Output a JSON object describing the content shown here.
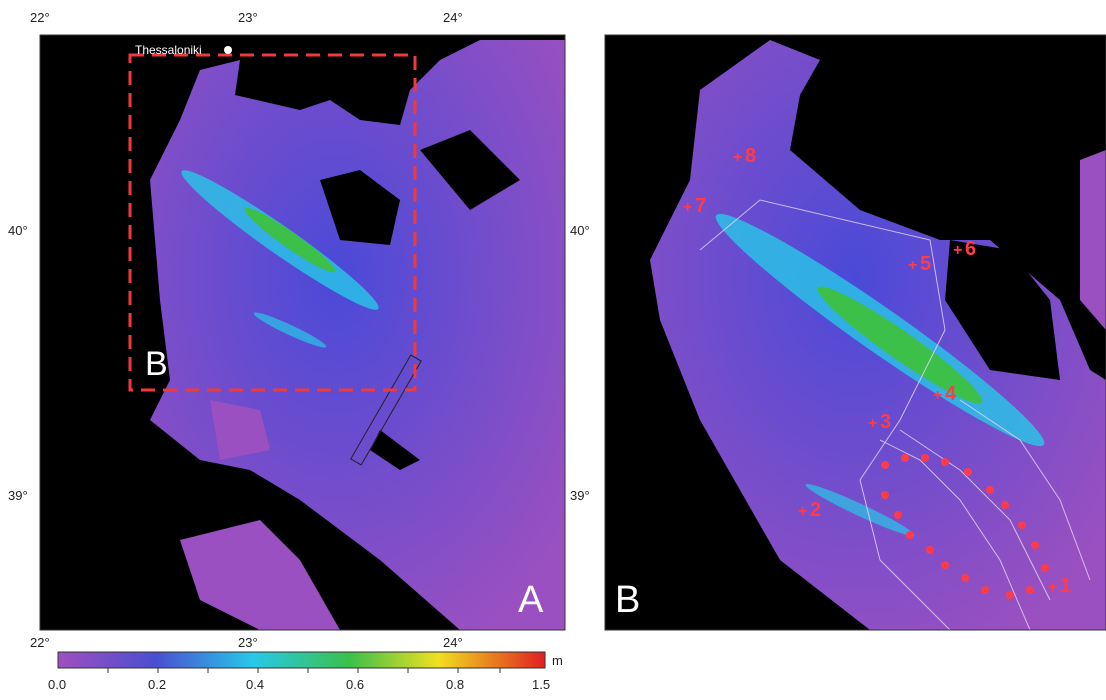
{
  "panel_a": {
    "label": "A",
    "inset_label": "B",
    "city": "Thessaloniki",
    "top_ticks": [
      "22°",
      "23°",
      "24°"
    ],
    "bottom_ticks": [
      "22°",
      "23°",
      "24°"
    ],
    "left_ticks": [
      "40°",
      "39°"
    ],
    "right_ticks": [
      "40°",
      "39°"
    ]
  },
  "panel_b": {
    "label": "B",
    "stations": [
      "1",
      "2",
      "3",
      "4",
      "5",
      "6",
      "7",
      "8"
    ]
  },
  "colorbar": {
    "unit": "m",
    "labels": [
      "0.0",
      "0.2",
      "0.4",
      "0.6",
      "0.8",
      "1.5"
    ]
  }
}
